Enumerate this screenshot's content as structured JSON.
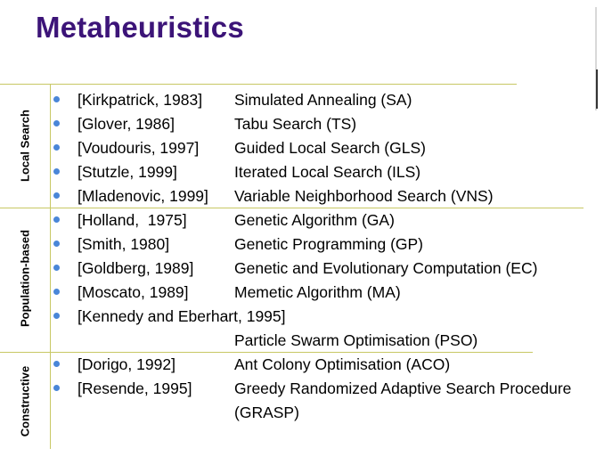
{
  "slide": {
    "title": "Metaheuristics"
  },
  "sections": [
    {
      "label": "Local Search",
      "rows": [
        {
          "ref": "[Kirkpatrick, 1983]",
          "method": "Simulated Annealing (SA)"
        },
        {
          "ref": "[Glover, 1986]",
          "method": "Tabu Search (TS)"
        },
        {
          "ref": "[Voudouris, 1997]",
          "method": "Guided Local Search (GLS)"
        },
        {
          "ref": "[Stutzle, 1999]",
          "method": "Iterated Local Search (ILS)"
        },
        {
          "ref": "[Mladenovic, 1999]",
          "method": "Variable Neighborhood Search (VNS)"
        }
      ]
    },
    {
      "label": "Population-based",
      "rows": [
        {
          "ref": "[Holland,  1975]",
          "method": "Genetic Algorithm (GA)"
        },
        {
          "ref": "[Smith, 1980]",
          "method": "Genetic Programming (GP)"
        },
        {
          "ref": "[Goldberg, 1989]",
          "method": "Genetic and Evolutionary Computation (EC)"
        },
        {
          "ref": "[Moscato, 1989]",
          "method": "Memetic Algorithm (MA)"
        },
        {
          "ref": "[Kennedy and Eberhart, 1995]",
          "method": ""
        },
        {
          "ref": "",
          "method": "Particle Swarm Optimisation (PSO)",
          "continuation": true
        }
      ]
    },
    {
      "label": "Constructive",
      "rows": [
        {
          "ref": "[Dorigo, 1992]",
          "method": "Ant Colony Optimisation (ACO)"
        },
        {
          "ref": "[Resende, 1995]",
          "method": "Greedy Randomized Adaptive Search Procedure"
        },
        {
          "ref": "",
          "method": "(GRASP)",
          "continuation": true
        }
      ]
    }
  ],
  "colors": {
    "title": "#3c1478",
    "bullet": "#4a86d8",
    "rule": "#c8c864"
  }
}
